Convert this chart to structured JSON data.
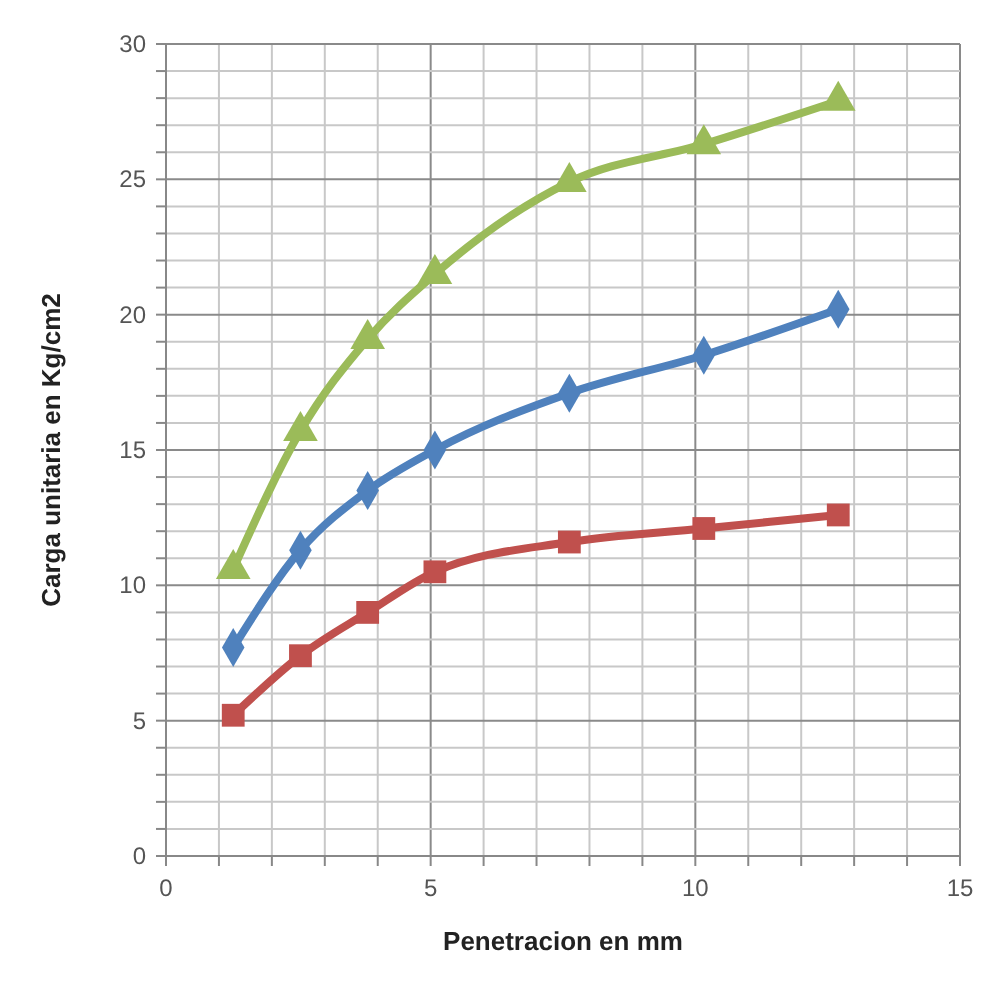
{
  "chart_data": {
    "type": "line",
    "xlabel": "Penetracion en mm",
    "ylabel": "Carga unitaria en Kg/cm2",
    "xlim": [
      0,
      15
    ],
    "ylim": [
      0,
      30
    ],
    "xticks": [
      0,
      {
        "value": 1,
        "label": null
      },
      {
        "value": 2,
        "label": null
      },
      {
        "value": 3,
        "label": null
      },
      {
        "value": 4,
        "label": null
      },
      5,
      {
        "value": 6,
        "label": null
      },
      {
        "value": 7,
        "label": null
      },
      {
        "value": 8,
        "label": null
      },
      {
        "value": 9,
        "label": null
      },
      10,
      {
        "value": 11,
        "label": null
      },
      {
        "value": 12,
        "label": null
      },
      {
        "value": 13,
        "label": null
      },
      {
        "value": 14,
        "label": null
      },
      15
    ],
    "yticks": [
      0,
      {
        "value": 1,
        "label": null
      },
      {
        "value": 2,
        "label": null
      },
      {
        "value": 3,
        "label": null
      },
      {
        "value": 4,
        "label": null
      },
      5,
      {
        "value": 6,
        "label": null
      },
      {
        "value": 7,
        "label": null
      },
      {
        "value": 8,
        "label": null
      },
      {
        "value": 9,
        "label": null
      },
      10,
      {
        "value": 11,
        "label": null
      },
      {
        "value": 12,
        "label": null
      },
      {
        "value": 13,
        "label": null
      },
      {
        "value": 14,
        "label": null
      },
      15,
      {
        "value": 16,
        "label": null
      },
      {
        "value": 17,
        "label": null
      },
      {
        "value": 18,
        "label": null
      },
      {
        "value": 19,
        "label": null
      },
      20,
      {
        "value": 21,
        "label": null
      },
      {
        "value": 22,
        "label": null
      },
      {
        "value": 23,
        "label": null
      },
      {
        "value": 24,
        "label": null
      },
      25,
      {
        "value": 26,
        "label": null
      },
      {
        "value": 27,
        "label": null
      },
      {
        "value": 28,
        "label": null
      },
      {
        "value": 29,
        "label": null
      },
      30
    ],
    "grid": true,
    "x": [
      1.27,
      2.54,
      3.81,
      5.08,
      7.62,
      10.16,
      12.7
    ],
    "series": [
      {
        "color": "#9bbb59",
        "marker": "triangle",
        "values": [
          10.6,
          15.7,
          19.1,
          21.5,
          24.9,
          26.3,
          27.9
        ]
      },
      {
        "color": "#4f81bd",
        "marker": "diamond",
        "values": [
          7.7,
          11.3,
          13.5,
          15.0,
          17.1,
          18.5,
          20.2
        ]
      },
      {
        "color": "#c0504d",
        "marker": "square",
        "values": [
          5.2,
          7.4,
          9.0,
          10.5,
          11.6,
          12.1,
          12.6
        ]
      }
    ]
  }
}
